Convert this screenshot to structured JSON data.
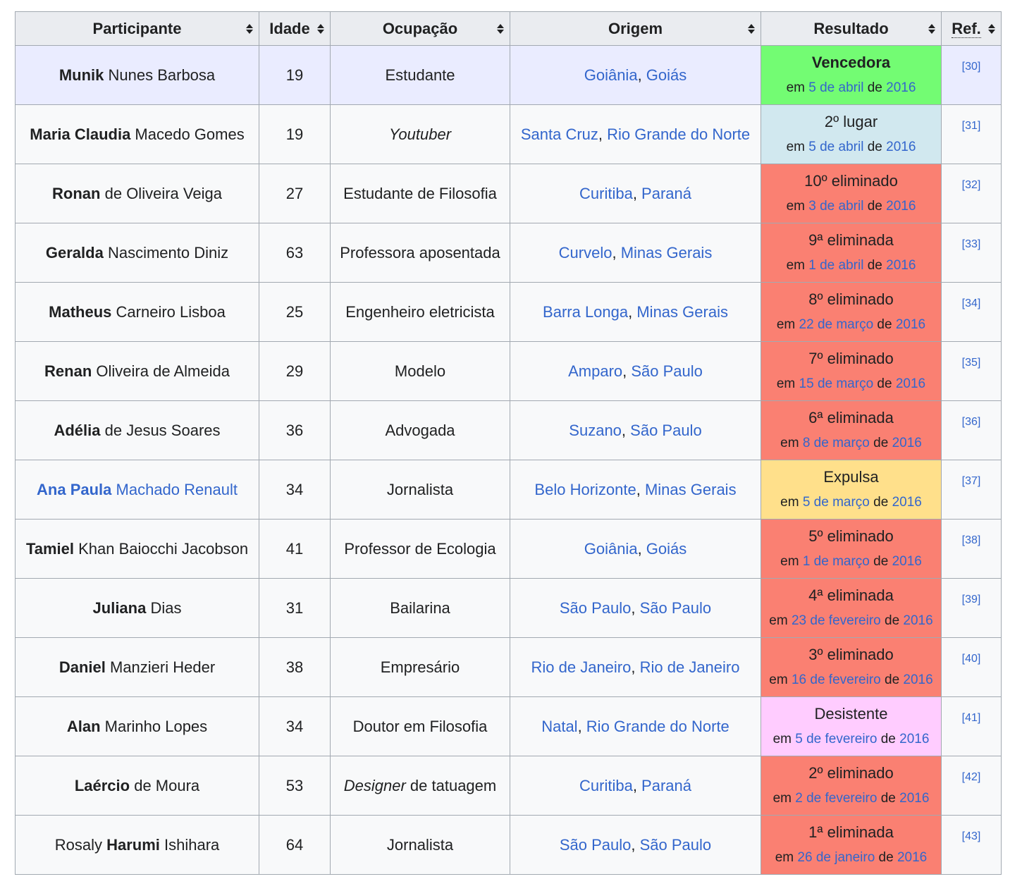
{
  "headers": [
    "Participante",
    "Idade",
    "Ocupação",
    "Origem",
    "Resultado",
    "Ref."
  ],
  "colors": {
    "winner": "#73fc73",
    "runnerup": "#d1e8ef",
    "eliminated": "#fa8072",
    "expelled": "#ffe08b",
    "quit": "#ffccff",
    "winner_row": "#eaecff"
  },
  "rows": [
    {
      "first": "Munik",
      "rest": " Nunes Barbosa",
      "name_link": false,
      "age": "19",
      "occ": "Estudante",
      "occ_italic": "",
      "occ_rest": "",
      "city": "Goiânia",
      "state": "Goiás",
      "result": "Vencedora",
      "result_bold": true,
      "result_color": "#73fc73",
      "pre": "em ",
      "day": "5 de abril",
      "mid": " de ",
      "year": "2016",
      "ref": "[30]",
      "winner": true
    },
    {
      "first": "Maria Claudia",
      "rest": " Macedo Gomes",
      "name_link": false,
      "age": "19",
      "occ": "",
      "occ_italic": "Youtuber",
      "occ_rest": "",
      "city": "Santa Cruz",
      "state": "Rio Grande do Norte",
      "result": "2º lugar",
      "result_bold": false,
      "result_color": "#d1e8ef",
      "pre": "em ",
      "day": "5 de abril",
      "mid": " de ",
      "year": "2016",
      "ref": "[31]",
      "winner": false
    },
    {
      "first": "Ronan",
      "rest": " de Oliveira Veiga",
      "name_link": false,
      "age": "27",
      "occ": "Estudante de Filosofia",
      "occ_italic": "",
      "occ_rest": "",
      "city": "Curitiba",
      "state": "Paraná",
      "result": "10º eliminado",
      "result_bold": false,
      "result_color": "#fa8072",
      "pre": "em ",
      "day": "3 de abril",
      "mid": " de ",
      "year": "2016",
      "ref": "[32]",
      "winner": false
    },
    {
      "first": "Geralda",
      "rest": " Nascimento Diniz",
      "name_link": false,
      "age": "63",
      "occ": "Professora aposentada",
      "occ_italic": "",
      "occ_rest": "",
      "city": "Curvelo",
      "state": "Minas Gerais",
      "result": "9ª eliminada",
      "result_bold": false,
      "result_color": "#fa8072",
      "pre": "em ",
      "day": "1 de abril",
      "mid": " de ",
      "year": "2016",
      "ref": "[33]",
      "winner": false
    },
    {
      "first": "Matheus",
      "rest": " Carneiro Lisboa",
      "name_link": false,
      "age": "25",
      "occ": "Engenheiro eletricista",
      "occ_italic": "",
      "occ_rest": "",
      "city": "Barra Longa",
      "state": "Minas Gerais",
      "result": "8º eliminado",
      "result_bold": false,
      "result_color": "#fa8072",
      "pre": "em ",
      "day": "22 de março",
      "mid": " de ",
      "year": "2016",
      "ref": "[34]",
      "winner": false
    },
    {
      "first": "Renan",
      "rest": " Oliveira de Almeida",
      "name_link": false,
      "age": "29",
      "occ": "Modelo",
      "occ_italic": "",
      "occ_rest": "",
      "city": "Amparo",
      "state": "São Paulo",
      "result": "7º eliminado",
      "result_bold": false,
      "result_color": "#fa8072",
      "pre": "em ",
      "day": "15 de março",
      "mid": " de ",
      "year": "2016",
      "ref": "[35]",
      "winner": false
    },
    {
      "first": "Adélia",
      "rest": " de Jesus Soares",
      "name_link": false,
      "age": "36",
      "occ": "Advogada",
      "occ_italic": "",
      "occ_rest": "",
      "city": "Suzano",
      "state": "São Paulo",
      "result": "6ª eliminada",
      "result_bold": false,
      "result_color": "#fa8072",
      "pre": "em ",
      "day": "8 de março",
      "mid": " de ",
      "year": "2016",
      "ref": "[36]",
      "winner": false
    },
    {
      "first": "Ana Paula",
      "rest": " Machado Renault",
      "name_link": true,
      "age": "34",
      "occ": "Jornalista",
      "occ_italic": "",
      "occ_rest": "",
      "city": "Belo Horizonte",
      "state": "Minas Gerais",
      "result": "Expulsa",
      "result_bold": false,
      "result_color": "#ffe08b",
      "pre": "em ",
      "day": "5 de março",
      "mid": " de ",
      "year": "2016",
      "ref": "[37]",
      "winner": false
    },
    {
      "first": "Tamiel",
      "rest": " Khan Baiocchi Jacobson",
      "name_link": false,
      "age": "41",
      "occ": "Professor de Ecologia",
      "occ_italic": "",
      "occ_rest": "",
      "city": "Goiânia",
      "state": "Goiás",
      "result": "5º eliminado",
      "result_bold": false,
      "result_color": "#fa8072",
      "pre": "em ",
      "day": "1 de março",
      "mid": " de ",
      "year": "2016",
      "ref": "[38]",
      "winner": false
    },
    {
      "first": "Juliana",
      "rest": " Dias",
      "name_link": false,
      "age": "31",
      "occ": "Bailarina",
      "occ_italic": "",
      "occ_rest": "",
      "city": "São Paulo",
      "state": "São Paulo",
      "result": "4ª eliminada",
      "result_bold": false,
      "result_color": "#fa8072",
      "pre": "em ",
      "day": "23 de fevereiro",
      "mid": " de ",
      "year": "2016",
      "ref": "[39]",
      "winner": false
    },
    {
      "first": "Daniel",
      "rest": " Manzieri Heder",
      "name_link": false,
      "age": "38",
      "occ": "Empresário",
      "occ_italic": "",
      "occ_rest": "",
      "city": "Rio de Janeiro",
      "state": "Rio de Janeiro",
      "result": "3º eliminado",
      "result_bold": false,
      "result_color": "#fa8072",
      "pre": "em ",
      "day": "16 de fevereiro",
      "mid": " de ",
      "year": "2016",
      "ref": "[40]",
      "winner": false
    },
    {
      "first": "Alan",
      "rest": " Marinho Lopes",
      "name_link": false,
      "age": "34",
      "occ": "Doutor em Filosofia",
      "occ_italic": "",
      "occ_rest": "",
      "city": "Natal",
      "state": "Rio Grande do Norte",
      "result": "Desistente",
      "result_bold": false,
      "result_color": "#ffccff",
      "pre": "em ",
      "day": "5 de fevereiro",
      "mid": " de ",
      "year": "2016",
      "ref": "[41]",
      "winner": false
    },
    {
      "first": "Laércio",
      "rest": " de Moura",
      "name_link": false,
      "age": "53",
      "occ": "",
      "occ_italic": "Designer",
      "occ_rest": " de tatuagem",
      "city": "Curitiba",
      "state": "Paraná",
      "result": "2º eliminado",
      "result_bold": false,
      "result_color": "#fa8072",
      "pre": "em ",
      "day": "2 de fevereiro",
      "mid": " de ",
      "year": "2016",
      "ref": "[42]",
      "winner": false
    },
    {
      "first": "Rosaly ",
      "first_plain": true,
      "mid_bold": "Harumi",
      "rest": " Ishihara",
      "name_link": false,
      "age": "64",
      "occ": "Jornalista",
      "occ_italic": "",
      "occ_rest": "",
      "city": "São Paulo",
      "state": "São Paulo",
      "result": "1ª eliminada",
      "result_bold": false,
      "result_color": "#fa8072",
      "pre": "em ",
      "day": "26 de janeiro",
      "mid": " de ",
      "year": "2016",
      "ref": "[43]",
      "winner": false
    }
  ]
}
